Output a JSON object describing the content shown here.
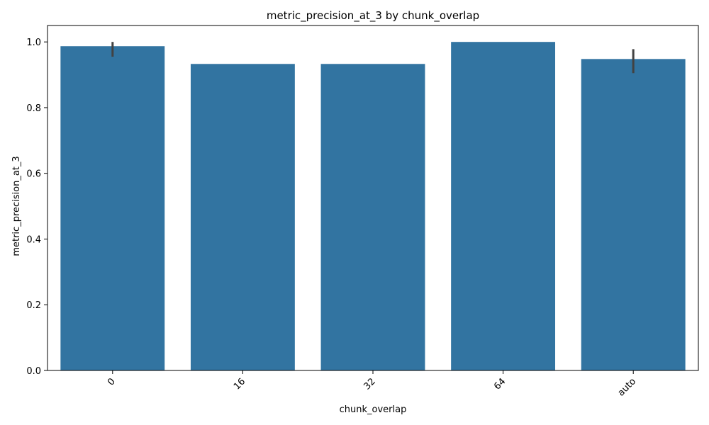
{
  "chart_data": {
    "type": "bar",
    "title": "metric_precision_at_3 by chunk_overlap",
    "xlabel": "chunk_overlap",
    "ylabel": "metric_precision_at_3",
    "categories": [
      "0",
      "16",
      "32",
      "64",
      "auto"
    ],
    "values": [
      0.987,
      0.933,
      0.933,
      1.0,
      0.948
    ],
    "error_bars": [
      {
        "low": 0.955,
        "high": 1.0
      },
      null,
      null,
      null,
      {
        "low": 0.905,
        "high": 0.978
      }
    ],
    "ylim": [
      0,
      1.05
    ],
    "yticks": [
      0.0,
      0.2,
      0.4,
      0.6,
      0.8,
      1.0
    ],
    "ytick_labels": [
      "0.0",
      "0.2",
      "0.4",
      "0.6",
      "0.8",
      "1.0"
    ],
    "grid": false,
    "colors": {
      "bar": "#3274a1",
      "error_bar": "#424242",
      "axis": "#000000"
    }
  }
}
